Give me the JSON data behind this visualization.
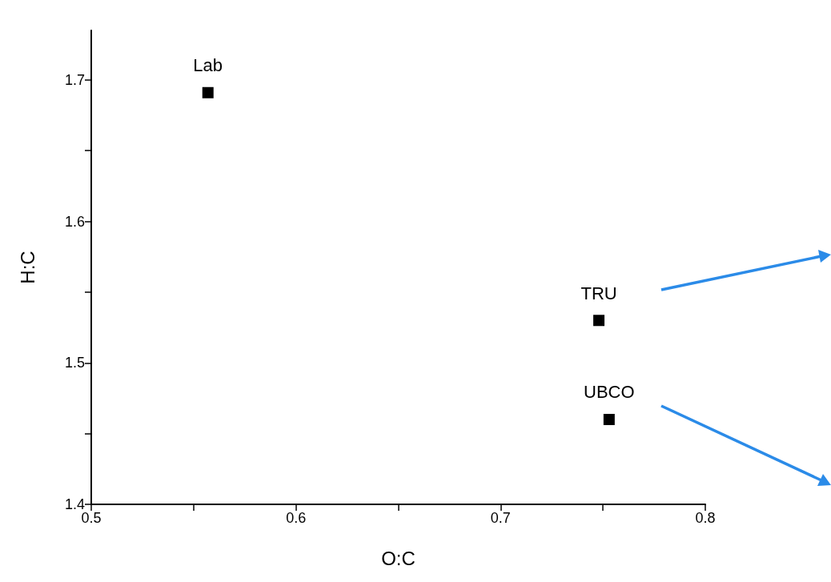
{
  "chart_data": {
    "type": "scatter",
    "xlabel": "O:C",
    "ylabel": "H:C",
    "x": [
      0.557,
      0.748,
      0.753
    ],
    "series": [
      {
        "color": "#000000",
        "values": [
          1.691,
          1.53,
          1.46
        ]
      }
    ],
    "marker": "square",
    "xlim": [
      0.5,
      0.8
    ],
    "xticks": [
      0.5,
      {
        "value": 0.55,
        "label": null
      },
      0.6,
      {
        "value": 0.65,
        "label": null
      },
      0.7,
      {
        "value": 0.75,
        "label": null
      },
      0.8
    ],
    "ylim": [
      1.4,
      1.735
    ],
    "yticks": [
      1.4,
      {
        "value": 1.45,
        "label": null
      },
      1.5,
      {
        "value": 1.55,
        "label": null
      },
      1.6,
      {
        "value": 1.65,
        "label": null
      },
      1.7
    ],
    "grid": false,
    "annotations": [
      {
        "text": "Lab",
        "x": 0.557,
        "y": 1.691
      },
      {
        "text": "TRU",
        "x": 0.748,
        "y": 1.53
      },
      {
        "text": "UBCO",
        "x": 0.753,
        "y": 1.46
      }
    ]
  }
}
